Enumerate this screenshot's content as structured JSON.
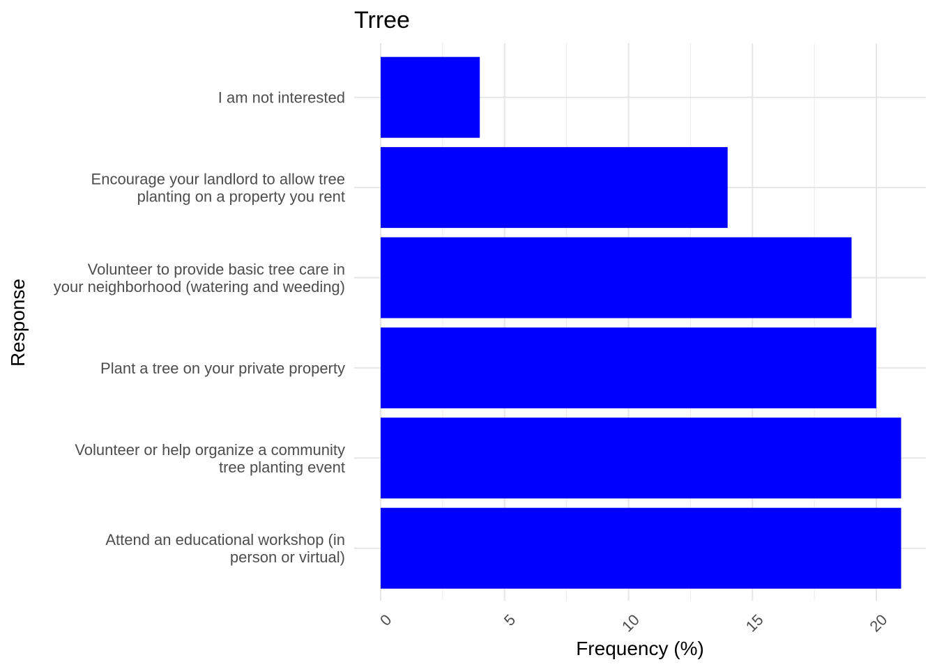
{
  "chart_data": {
    "type": "bar",
    "orientation": "horizontal",
    "title": "Trree",
    "xlabel": "Frequency (%)",
    "ylabel": "Response",
    "xlim": [
      0,
      21
    ],
    "x_ticks": [
      0,
      5,
      10,
      15,
      20
    ],
    "grid": true,
    "legend": "none",
    "bar_color": "#0000ff",
    "categories": [
      [
        "I am not interested"
      ],
      [
        "Encourage your landlord to allow tree",
        "planting on a property you rent"
      ],
      [
        "Volunteer to provide basic tree care in",
        "your neighborhood (watering and weeding)"
      ],
      [
        "Plant a tree on your private property"
      ],
      [
        "Volunteer or help organize a community",
        "tree planting event"
      ],
      [
        "Attend an educational workshop (in",
        "person or virtual)"
      ]
    ],
    "values": [
      4,
      14,
      19,
      20,
      21,
      21
    ]
  }
}
